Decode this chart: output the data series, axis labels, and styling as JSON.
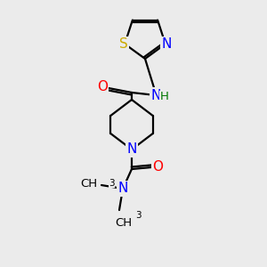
{
  "background_color": "#ebebeb",
  "bond_color": "#000000",
  "atom_colors": {
    "N": "#0000ff",
    "O": "#ff0000",
    "S": "#ccaa00",
    "C": "#000000",
    "H": "#007700"
  },
  "font_size_atoms": 11,
  "font_size_small": 9.5,
  "lw": 1.6
}
